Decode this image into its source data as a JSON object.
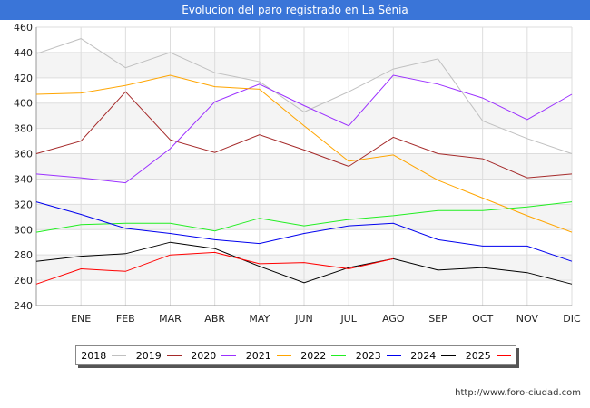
{
  "title": "Evolucion del paro registrado en La Sénia",
  "footer": "http://www.foro-ciudad.com",
  "chart_data": {
    "type": "line",
    "title": "Evolucion del paro registrado en La Sénia",
    "x_tick_labels": [
      "ENE",
      "FEB",
      "MAR",
      "ABR",
      "MAY",
      "JUN",
      "JUL",
      "AGO",
      "SEP",
      "OCT",
      "NOV",
      "DIC"
    ],
    "ylim": [
      240,
      460
    ],
    "y_ticks": [
      240,
      260,
      280,
      300,
      320,
      340,
      360,
      380,
      400,
      420,
      440,
      460
    ],
    "grid": true,
    "legend_position": "bottom",
    "series": [
      {
        "name": "2018",
        "color": "#c0c0c0",
        "values": [
          439,
          451,
          428,
          440,
          424,
          417,
          393,
          409,
          427,
          435,
          386,
          372,
          360
        ]
      },
      {
        "name": "2019",
        "color": "#a52a2a",
        "values": [
          360,
          370,
          409,
          371,
          361,
          375,
          363,
          350,
          373,
          360,
          356,
          341,
          344
        ]
      },
      {
        "name": "2020",
        "color": "#9b30ff",
        "values": [
          344,
          341,
          337,
          364,
          401,
          415,
          398,
          382,
          422,
          415,
          404,
          387,
          407
        ]
      },
      {
        "name": "2021",
        "color": "#ffa500",
        "values": [
          407,
          408,
          414,
          422,
          413,
          411,
          382,
          354,
          359,
          339,
          325,
          311,
          298
        ]
      },
      {
        "name": "2022",
        "color": "#22ee22",
        "values": [
          298,
          304,
          305,
          305,
          299,
          309,
          303,
          308,
          311,
          315,
          315,
          318,
          322
        ]
      },
      {
        "name": "2023",
        "color": "#0000ee",
        "values": [
          322,
          312,
          301,
          297,
          292,
          289,
          297,
          303,
          305,
          292,
          287,
          287,
          275
        ]
      },
      {
        "name": "2024",
        "color": "#000000",
        "values": [
          275,
          279,
          281,
          290,
          285,
          271,
          258,
          270,
          277,
          268,
          270,
          266,
          257
        ]
      },
      {
        "name": "2025",
        "color": "#ff0000",
        "values": [
          257,
          269,
          267,
          280,
          282,
          273,
          274,
          269,
          277
        ]
      }
    ]
  }
}
